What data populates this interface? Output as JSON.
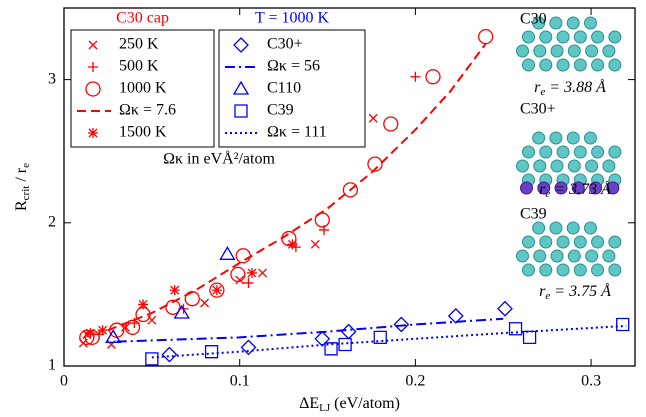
{
  "chart_data": {
    "type": "scatter",
    "xlabel": [
      {
        "text": "ΔE"
      },
      {
        "text": "LJ",
        "sub": true
      },
      {
        "text": " (eV/atom)"
      }
    ],
    "ylabel": [
      {
        "text": "R"
      },
      {
        "text": "crit",
        "sub": true
      },
      {
        "text": " / r"
      },
      {
        "text": "e",
        "sub": true
      }
    ],
    "xlim": [
      0,
      0.325
    ],
    "ylim": [
      1,
      3.5
    ],
    "xticks": [
      0,
      0.1,
      0.2,
      0.3
    ],
    "yticks": [
      1,
      2,
      3
    ],
    "note": "Ωκ in eVÅ²/atom",
    "groups": [
      {
        "title": "C30 cap",
        "color": "#ff0000",
        "series": [
          {
            "name": "250 K",
            "marker": "x",
            "x": [
              0.011,
              0.013,
              0.027,
              0.035,
              0.05,
              0.08,
              0.1,
              0.113,
              0.143,
              0.176
            ],
            "values": [
              1.16,
              1.22,
              1.15,
              1.27,
              1.32,
              1.44,
              1.6,
              1.65,
              1.85,
              2.73
            ]
          },
          {
            "name": "500 K",
            "marker": "plus",
            "x": [
              0.02,
              0.04,
              0.068,
              0.105,
              0.132,
              0.148,
              0.2
            ],
            "values": [
              1.22,
              1.3,
              1.4,
              1.58,
              1.83,
              1.95,
              3.02
            ]
          },
          {
            "name": "1000 K",
            "marker": "circle",
            "x": [
              0.013,
              0.016,
              0.03,
              0.039,
              0.045,
              0.062,
              0.073,
              0.087,
              0.099,
              0.102,
              0.128,
              0.147,
              0.163,
              0.177,
              0.186,
              0.21,
              0.24
            ],
            "values": [
              1.2,
              1.2,
              1.25,
              1.27,
              1.36,
              1.41,
              1.47,
              1.53,
              1.64,
              1.77,
              1.89,
              2.02,
              2.23,
              2.41,
              2.69,
              3.02,
              3.3
            ]
          },
          {
            "name": "Ωκ = 7.6",
            "line": "dashed",
            "x": [
              0.025,
              0.05,
              0.075,
              0.1,
              0.125,
              0.15,
              0.175,
              0.2,
              0.22,
              0.24
            ],
            "values": [
              1.25,
              1.37,
              1.53,
              1.72,
              1.9,
              2.1,
              2.35,
              2.65,
              2.92,
              3.25
            ]
          },
          {
            "name": "1500 K",
            "marker": "asterisk",
            "x": [
              0.015,
              0.022,
              0.045,
              0.063,
              0.087,
              0.107,
              0.13
            ],
            "values": [
              1.23,
              1.25,
              1.43,
              1.53,
              1.53,
              1.65,
              1.85
            ]
          }
        ]
      },
      {
        "title": "T = 1000 K",
        "color": "#0000ff",
        "series": [
          {
            "name": "C30+",
            "marker": "diamond",
            "x": [
              0.06,
              0.105,
              0.147,
              0.162,
              0.192,
              0.223,
              0.251
            ],
            "values": [
              1.08,
              1.13,
              1.19,
              1.24,
              1.29,
              1.35,
              1.4
            ]
          },
          {
            "name": "Ωκ = 56",
            "line": "dashdot",
            "x": [
              0.03,
              0.1,
              0.15,
              0.2,
              0.25
            ],
            "values": [
              1.17,
              1.2,
              1.24,
              1.29,
              1.33
            ]
          },
          {
            "name": "C110",
            "marker": "triangle",
            "x": [
              0.028,
              0.067,
              0.093
            ],
            "values": [
              1.2,
              1.37,
              1.78
            ]
          },
          {
            "name": "C39",
            "marker": "square",
            "x": [
              0.05,
              0.084,
              0.152,
              0.16,
              0.18,
              0.257,
              0.265,
              0.318
            ],
            "values": [
              1.05,
              1.1,
              1.12,
              1.15,
              1.2,
              1.26,
              1.2,
              1.29
            ]
          },
          {
            "name": "Ωκ = 111",
            "line": "dotted",
            "x": [
              0.05,
              0.1,
              0.15,
              0.2,
              0.25,
              0.32
            ],
            "values": [
              1.06,
              1.1,
              1.15,
              1.19,
              1.23,
              1.28
            ]
          }
        ]
      }
    ],
    "insets": [
      {
        "name": "C30",
        "radius": [
          {
            "text": "r"
          },
          {
            "text": "e",
            "sub": true
          },
          {
            "text": " = 3.88 Å"
          }
        ]
      },
      {
        "name": "C30+",
        "radius": [
          {
            "text": "r"
          },
          {
            "text": "e",
            "sub": true
          },
          {
            "text": " = 3.73 Å"
          }
        ]
      },
      {
        "name": "C39",
        "radius": [
          {
            "text": "r"
          },
          {
            "text": "e",
            "sub": true
          },
          {
            "text": " = 3.75 Å"
          }
        ]
      }
    ]
  }
}
